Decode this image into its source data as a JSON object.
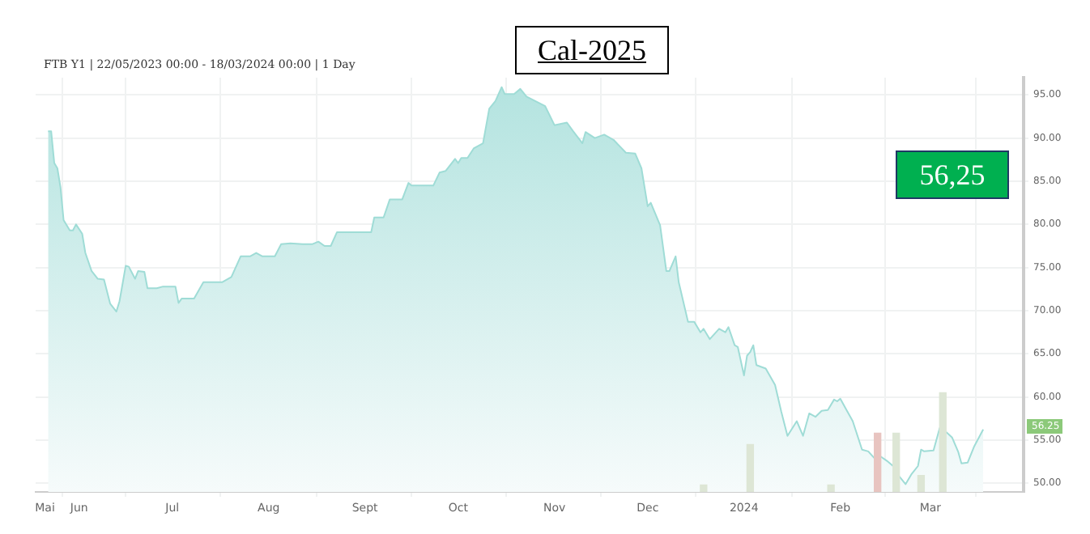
{
  "chart_data": {
    "type": "area",
    "title": "Cal-2025",
    "subtitle": "FTB Y1 | 22/05/2023 00:00 - 18/03/2024 00:00 | 1 Day",
    "annotations": [
      "56,25",
      "56.25"
    ],
    "xlim": [
      "2023-05-18",
      "2024-03-31"
    ],
    "xticks": [
      {
        "value": "2023-05-21",
        "label": "Mai"
      },
      {
        "value": "2023-06-01",
        "label": "Jun"
      },
      {
        "value": "2023-07-01",
        "label": "Jul"
      },
      {
        "value": "2023-08-01",
        "label": "Aug"
      },
      {
        "value": "2023-09-01",
        "label": "Sept"
      },
      {
        "value": "2023-10-01",
        "label": "Oct"
      },
      {
        "value": "2023-11-01",
        "label": "Nov"
      },
      {
        "value": "2023-12-01",
        "label": "Dec"
      },
      {
        "value": "2024-01-01",
        "label": "2024"
      },
      {
        "value": "2024-02-01",
        "label": "Feb"
      },
      {
        "value": "2024-03-01",
        "label": "Mar"
      }
    ],
    "ylim": [
      49,
      97
    ],
    "yticks": [
      {
        "value": 50,
        "label": "50.00"
      },
      {
        "value": 55,
        "label": "55.00"
      },
      {
        "value": 60,
        "label": "60.00"
      },
      {
        "value": 65,
        "label": "65.00"
      },
      {
        "value": 70,
        "label": "70.00"
      },
      {
        "value": 75,
        "label": "75.00"
      },
      {
        "value": 80,
        "label": "80.00"
      },
      {
        "value": 85,
        "label": "85.00"
      },
      {
        "value": 90,
        "label": "90.00"
      },
      {
        "value": 95,
        "label": "95.00"
      }
    ],
    "grid": true,
    "legend": false,
    "series": [
      {
        "color": "#9fdcd6",
        "x": [
          "2023-05-22",
          "2023-05-23",
          "2023-05-24",
          "2023-05-25",
          "2023-05-26",
          "2023-05-27",
          "2023-05-29",
          "2023-05-30",
          "2023-05-31",
          "2023-06-02",
          "2023-06-03",
          "2023-06-05",
          "2023-06-07",
          "2023-06-09",
          "2023-06-11",
          "2023-06-13",
          "2023-06-14",
          "2023-06-16",
          "2023-06-17",
          "2023-06-19",
          "2023-06-20",
          "2023-06-22",
          "2023-06-23",
          "2023-06-26",
          "2023-06-28",
          "2023-07-02",
          "2023-07-03",
          "2023-07-04",
          "2023-07-08",
          "2023-07-11",
          "2023-07-17",
          "2023-07-20",
          "2023-07-23",
          "2023-07-26",
          "2023-07-28",
          "2023-07-30",
          "2023-08-03",
          "2023-08-05",
          "2023-08-08",
          "2023-08-12",
          "2023-08-15",
          "2023-08-17",
          "2023-08-19",
          "2023-08-21",
          "2023-08-23",
          "2023-09-03",
          "2023-09-04",
          "2023-09-07",
          "2023-09-09",
          "2023-09-13",
          "2023-09-15",
          "2023-09-16",
          "2023-09-23",
          "2023-09-25",
          "2023-09-27",
          "2023-09-30",
          "2023-10-01",
          "2023-10-02",
          "2023-10-04",
          "2023-10-06",
          "2023-10-09",
          "2023-10-11",
          "2023-10-13",
          "2023-10-15",
          "2023-10-16",
          "2023-10-19",
          "2023-10-21",
          "2023-10-23",
          "2023-10-29",
          "2023-11-01",
          "2023-11-05",
          "2023-11-07",
          "2023-11-10",
          "2023-11-11",
          "2023-11-14",
          "2023-11-17",
          "2023-11-20",
          "2023-11-24",
          "2023-11-27",
          "2023-11-29",
          "2023-12-01",
          "2023-12-02",
          "2023-12-05",
          "2023-12-07",
          "2023-12-08",
          "2023-12-10",
          "2023-12-11",
          "2023-12-14",
          "2023-12-16",
          "2023-12-18",
          "2023-12-19",
          "2023-12-21",
          "2023-12-24",
          "2023-12-26",
          "2023-12-27",
          "2023-12-29",
          "2023-12-30",
          "2024-01-01",
          "2024-01-02",
          "2024-01-03",
          "2024-01-04",
          "2024-01-05",
          "2024-01-08",
          "2024-01-11",
          "2024-01-13",
          "2024-01-15",
          "2024-01-18",
          "2024-01-20",
          "2024-01-22",
          "2024-01-24",
          "2024-01-26",
          "2024-01-28",
          "2024-01-30",
          "2024-01-31",
          "2024-02-01",
          "2024-02-03",
          "2024-02-05",
          "2024-02-08",
          "2024-02-10",
          "2024-02-12",
          "2024-02-14",
          "2024-02-16",
          "2024-02-18",
          "2024-02-20",
          "2024-02-22",
          "2024-02-24",
          "2024-02-26",
          "2024-02-27",
          "2024-02-28",
          "2024-03-02",
          "2024-03-04",
          "2024-03-05",
          "2024-03-08",
          "2024-03-10",
          "2024-03-11",
          "2024-03-13",
          "2024-03-15",
          "2024-03-18"
        ],
        "values": [
          90.8,
          90.8,
          87.1,
          86.5,
          84.3,
          80.5,
          79.3,
          79.3,
          80.0,
          78.9,
          76.7,
          74.6,
          73.7,
          73.6,
          70.8,
          69.9,
          71.1,
          75.2,
          75.1,
          73.7,
          74.6,
          74.5,
          72.6,
          72.6,
          72.8,
          72.8,
          70.9,
          71.4,
          71.4,
          73.3,
          73.3,
          73.9,
          76.3,
          76.3,
          76.7,
          76.3,
          76.3,
          77.7,
          77.8,
          77.7,
          77.7,
          78.0,
          77.5,
          77.5,
          79.1,
          79.1,
          80.8,
          80.8,
          82.9,
          82.9,
          84.8,
          84.5,
          84.5,
          86.0,
          86.2,
          87.6,
          87.1,
          87.7,
          87.7,
          88.8,
          89.4,
          93.4,
          94.3,
          95.9,
          95.1,
          95.1,
          95.7,
          94.8,
          93.7,
          91.5,
          91.8,
          90.8,
          89.4,
          90.7,
          90.0,
          90.4,
          89.8,
          88.3,
          88.2,
          86.5,
          82.1,
          82.5,
          79.9,
          74.6,
          74.6,
          76.3,
          73.3,
          68.7,
          68.7,
          67.5,
          67.9,
          66.7,
          67.9,
          67.5,
          68.1,
          66.0,
          65.8,
          62.5,
          64.8,
          65.2,
          66.0,
          63.7,
          63.3,
          61.4,
          58.3,
          55.5,
          57.2,
          55.5,
          58.1,
          57.7,
          58.4,
          58.5,
          59.7,
          59.5,
          59.8,
          58.5,
          57.2,
          53.9,
          53.7,
          52.9,
          53.1,
          52.6,
          52.0,
          50.8,
          49.9,
          51.1,
          52.0,
          53.9,
          53.7,
          53.8,
          56.4,
          56.3,
          55.3,
          53.6,
          52.3,
          52.4,
          54.2,
          56.25
        ]
      },
      {
        "type": "bar",
        "colors": [
          "#dde6d5",
          "#dde6d5",
          "#dde6d5",
          "#e8c4c0",
          "#dde6d5",
          "#dde6d5",
          "#dde6d5"
        ],
        "x": [
          "2023-12-19",
          "2024-01-03",
          "2024-01-29",
          "2024-02-13",
          "2024-02-19",
          "2024-02-27",
          "2024-03-05"
        ],
        "values": [
          49.8,
          54.5,
          49.8,
          55.8,
          55.8,
          50.9,
          60.5
        ]
      }
    ]
  }
}
